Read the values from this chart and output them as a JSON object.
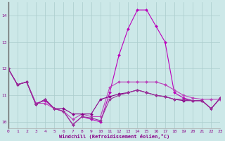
{
  "x": [
    0,
    1,
    2,
    3,
    4,
    5,
    6,
    7,
    8,
    9,
    10,
    11,
    12,
    13,
    14,
    15,
    16,
    17,
    18,
    19,
    20,
    21,
    22,
    23
  ],
  "series1": [
    12.0,
    11.4,
    11.5,
    10.7,
    10.8,
    10.5,
    10.4,
    9.9,
    10.2,
    10.1,
    10.0,
    11.1,
    12.5,
    13.5,
    14.2,
    14.2,
    13.6,
    13.0,
    11.1,
    10.9,
    10.8,
    10.8,
    10.5,
    10.9
  ],
  "series2": [
    12.0,
    11.4,
    11.5,
    10.7,
    10.7,
    10.5,
    10.4,
    10.1,
    10.3,
    10.2,
    10.2,
    11.3,
    11.5,
    11.5,
    11.5,
    11.5,
    11.5,
    11.4,
    11.2,
    11.0,
    10.9,
    10.85,
    10.85,
    10.85
  ],
  "series3": [
    12.0,
    11.4,
    11.5,
    10.65,
    10.85,
    10.5,
    10.5,
    10.3,
    10.3,
    10.3,
    10.85,
    10.95,
    11.05,
    11.1,
    11.2,
    11.1,
    11.0,
    10.95,
    10.85,
    10.8,
    10.8,
    10.8,
    10.5,
    10.9
  ],
  "series4": [
    12.0,
    11.4,
    11.5,
    10.65,
    10.85,
    10.5,
    10.4,
    9.9,
    10.2,
    10.15,
    10.05,
    10.85,
    11.0,
    11.1,
    11.2,
    11.1,
    11.0,
    10.95,
    10.85,
    10.85,
    10.8,
    10.8,
    10.5,
    10.9
  ],
  "line_color1": "#bb00bb",
  "line_color2": "#bb44bb",
  "line_color3": "#880088",
  "line_color4": "#993399",
  "bg_color": "#cce8e8",
  "grid_color": "#aacccc",
  "axis_color": "#880088",
  "tick_color": "#880088",
  "xlabel": "Windchill (Refroidissement éolien,°C)",
  "xlim": [
    0,
    23
  ],
  "ylim": [
    9.75,
    14.5
  ],
  "yticks": [
    10,
    11,
    12,
    13,
    14
  ],
  "xticks": [
    0,
    1,
    2,
    3,
    4,
    5,
    6,
    7,
    8,
    9,
    10,
    11,
    12,
    13,
    14,
    15,
    16,
    17,
    18,
    19,
    20,
    21,
    22,
    23
  ]
}
